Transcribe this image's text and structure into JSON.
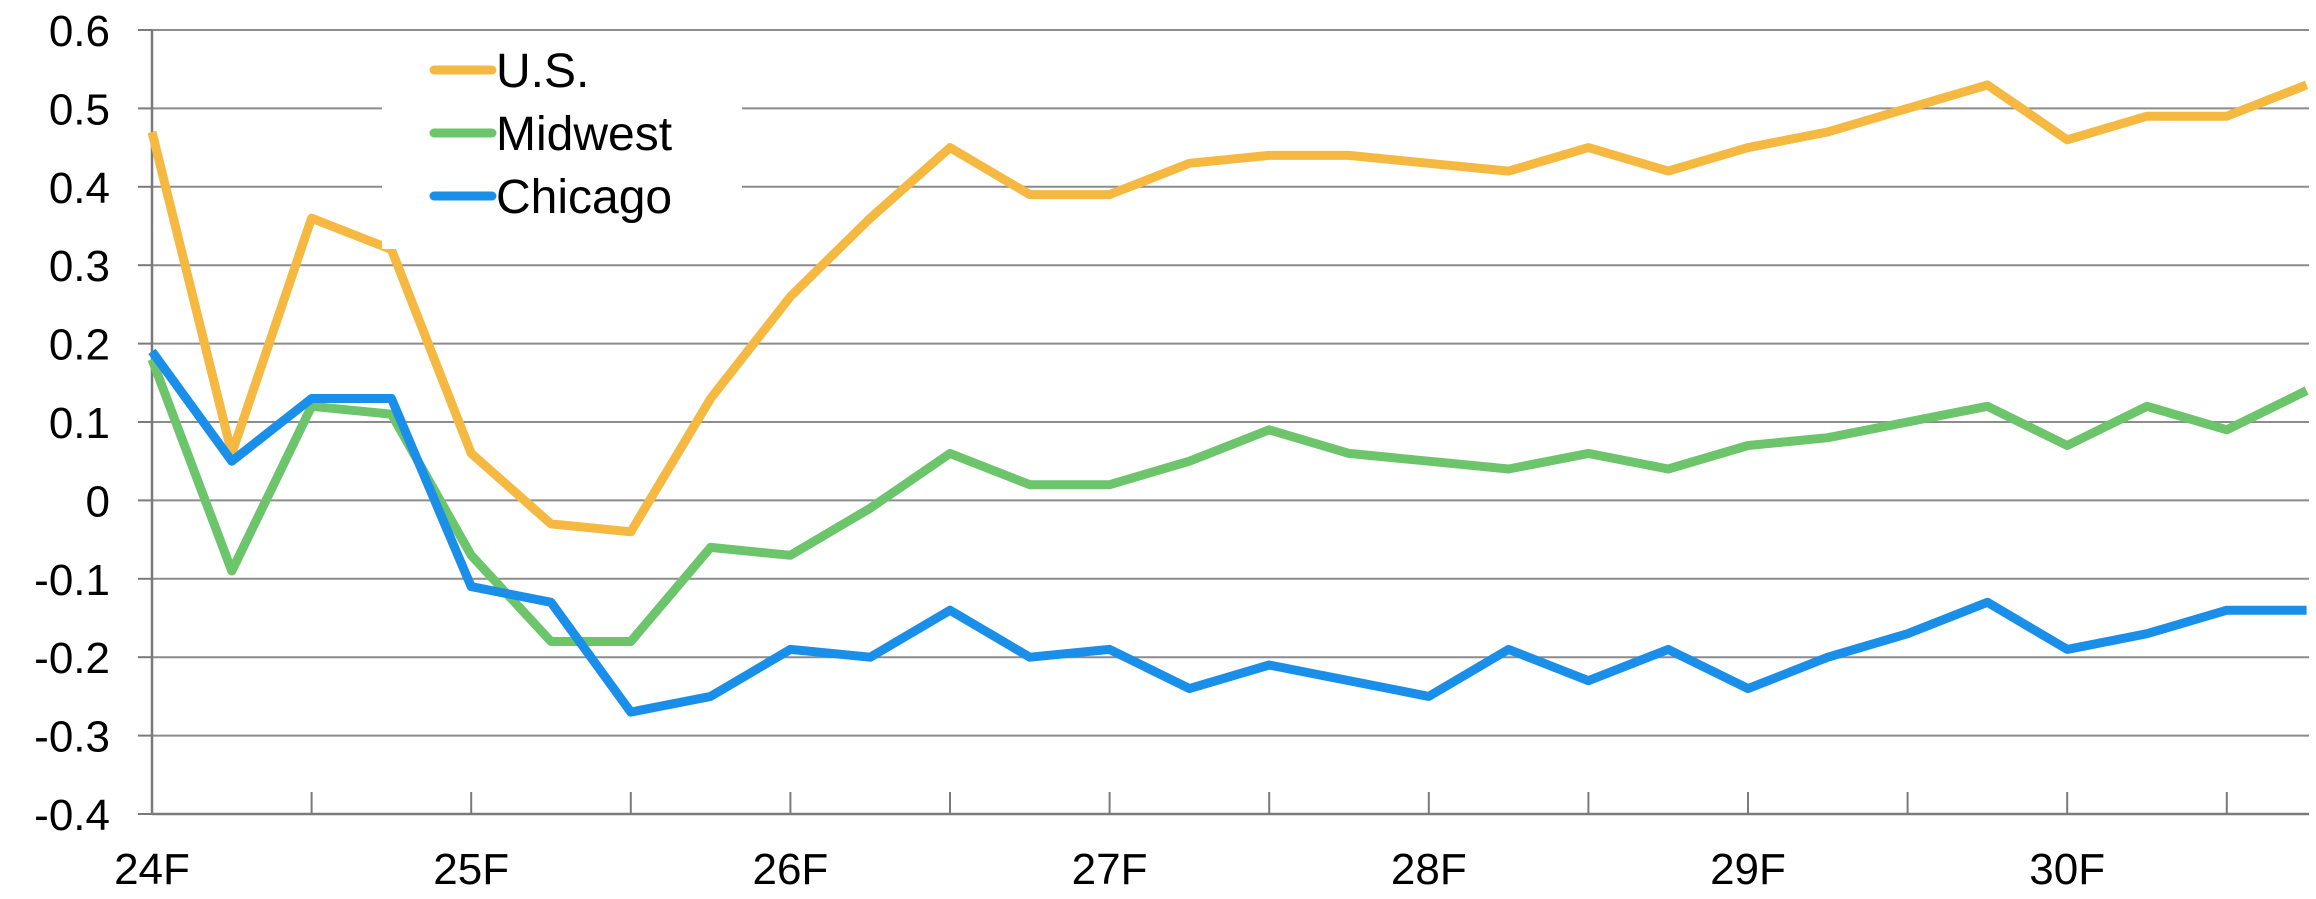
{
  "chart_data": {
    "type": "line",
    "title": "",
    "xlabel": "",
    "ylabel": "",
    "ylim": [
      -0.4,
      0.6
    ],
    "yticks": [
      0.6,
      0.5,
      0.4,
      0.3,
      0.2,
      0.1,
      0,
      -0.1,
      -0.2,
      -0.3,
      -0.4
    ],
    "ytick_labels": [
      "0.6",
      "0.5",
      "0.4",
      "0.3",
      "0.2",
      "0.1",
      "0",
      "-0.1",
      "-0.2",
      "-0.3",
      "-0.4"
    ],
    "x_tick_labels": [
      "24F",
      "25F",
      "26F",
      "27F",
      "28F",
      "29F",
      "30F"
    ],
    "x": [
      "24F",
      "24F+1",
      "24F+2",
      "24F+3",
      "25F",
      "25F+1",
      "25F+2",
      "25F+3",
      "26F",
      "26F+1",
      "26F+2",
      "26F+3",
      "27F",
      "27F+1",
      "27F+2",
      "27F+3",
      "28F",
      "28F+1",
      "28F+2",
      "28F+3",
      "29F",
      "29F+1",
      "29F+2",
      "29F+3",
      "30F",
      "30F+1",
      "30F+2",
      "30F+3"
    ],
    "grid": "horizontal",
    "legend_position": "top-left",
    "series": [
      {
        "name": "U.S.",
        "color": "#F5B942",
        "values": [
          0.47,
          0.06,
          0.36,
          0.32,
          0.06,
          -0.03,
          -0.04,
          0.13,
          0.26,
          0.36,
          0.45,
          0.39,
          0.39,
          0.43,
          0.44,
          0.44,
          0.43,
          0.42,
          0.45,
          0.42,
          0.45,
          0.47,
          0.5,
          0.53,
          0.46,
          0.49,
          0.49,
          0.53
        ]
      },
      {
        "name": "Midwest",
        "color": "#6CC56A",
        "values": [
          0.18,
          -0.09,
          0.12,
          0.11,
          -0.07,
          -0.18,
          -0.18,
          -0.06,
          -0.07,
          -0.01,
          0.06,
          0.02,
          0.02,
          0.05,
          0.09,
          0.06,
          0.05,
          0.04,
          0.06,
          0.04,
          0.07,
          0.08,
          0.1,
          0.12,
          0.07,
          0.12,
          0.09,
          0.14
        ]
      },
      {
        "name": "Chicago",
        "color": "#1A8FEA",
        "values": [
          0.19,
          0.05,
          0.13,
          0.13,
          -0.11,
          -0.13,
          -0.27,
          -0.25,
          -0.19,
          -0.2,
          -0.14,
          -0.2,
          -0.19,
          -0.24,
          -0.21,
          -0.23,
          -0.25,
          -0.19,
          -0.23,
          -0.19,
          -0.24,
          -0.2,
          -0.17,
          -0.13,
          -0.19,
          -0.17,
          -0.14,
          -0.14
        ]
      }
    ]
  }
}
